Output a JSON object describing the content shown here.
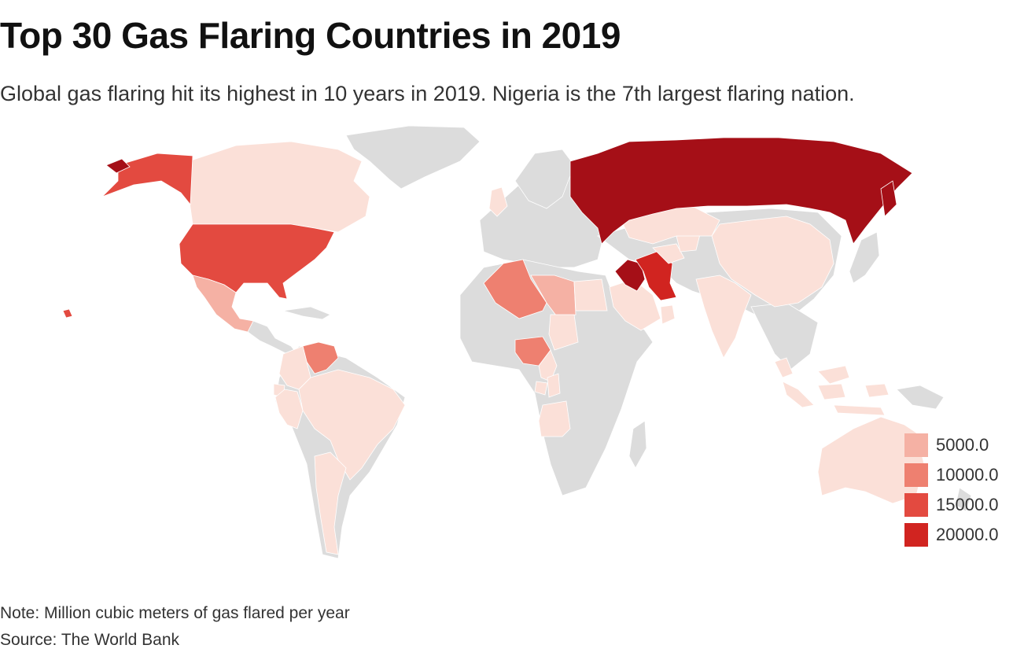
{
  "title": "Top 30 Gas Flaring Countries in 2019",
  "subtitle": "Global gas flaring hit its highest in 10 years in 2019. Nigeria is the 7th largest flaring nation.",
  "note": "Note: Million cubic meters of gas flared per year",
  "source": "Source: The World Bank",
  "colors": {
    "background": "#ffffff",
    "no_data": "#dcdcdc",
    "scale": [
      "#fbe0d8",
      "#f5b1a4",
      "#ee8070",
      "#e34a40",
      "#d12420",
      "#a50f17"
    ]
  },
  "legend": {
    "items": [
      {
        "label": "5000.0",
        "color": "#f5b1a4"
      },
      {
        "label": "10000.0",
        "color": "#ee8070"
      },
      {
        "label": "15000.0",
        "color": "#e34a40"
      },
      {
        "label": "20000.0",
        "color": "#d12420"
      }
    ]
  },
  "map": {
    "countries": [
      {
        "name": "Russia",
        "level": 5
      },
      {
        "name": "Iraq",
        "level": 5
      },
      {
        "name": "Iran",
        "level": 4
      },
      {
        "name": "United States",
        "level": 4
      },
      {
        "name": "Alaska (United States)",
        "level": 4
      },
      {
        "name": "Venezuela",
        "level": 3
      },
      {
        "name": "Algeria",
        "level": 3
      },
      {
        "name": "Nigeria",
        "level": 3
      },
      {
        "name": "Libya",
        "level": 2
      },
      {
        "name": "Mexico",
        "level": 2
      },
      {
        "name": "Canada",
        "level": 1
      },
      {
        "name": "China",
        "level": 1
      },
      {
        "name": "Kazakhstan",
        "level": 1
      },
      {
        "name": "Saudi Arabia",
        "level": 1
      },
      {
        "name": "Egypt",
        "level": 1
      },
      {
        "name": "Oman",
        "level": 1
      },
      {
        "name": "India",
        "level": 1
      },
      {
        "name": "Brazil",
        "level": 1
      },
      {
        "name": "Argentina",
        "level": 1
      },
      {
        "name": "Australia",
        "level": 1
      },
      {
        "name": "Indonesia",
        "level": 1
      },
      {
        "name": "Malaysia",
        "level": 1
      },
      {
        "name": "Angola",
        "level": 1
      },
      {
        "name": "Colombia",
        "level": 1
      },
      {
        "name": "Ecuador",
        "level": 1
      },
      {
        "name": "Turkmenistan",
        "level": 1
      },
      {
        "name": "Uzbekistan",
        "level": 1
      },
      {
        "name": "United Kingdom",
        "level": 1
      },
      {
        "name": "Cameroon",
        "level": 1
      },
      {
        "name": "Gabon",
        "level": 1
      },
      {
        "name": "Congo",
        "level": 1
      },
      {
        "name": "Peru",
        "level": 1
      },
      {
        "name": "Chad",
        "level": 1
      }
    ]
  }
}
